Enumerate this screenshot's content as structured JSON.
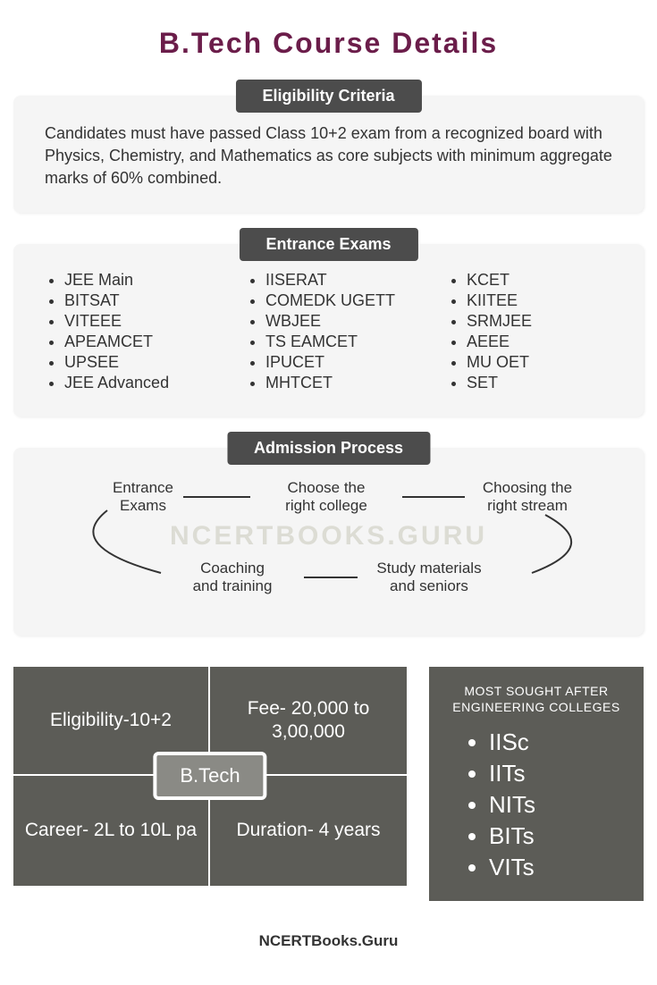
{
  "colors": {
    "title": "#6b1d4a",
    "header_bg": "#4c4c4c",
    "card_bg": "#f5f5f5",
    "dark_panel": "#5c5c57",
    "quad_center": "#8a8a85",
    "watermark": "#dcdcd4",
    "text": "#333333"
  },
  "title": "B.Tech Course Details",
  "eligibility": {
    "header": "Eligibility Criteria",
    "text": "Candidates must have passed Class 10+2 exam from a recognized board with Physics, Chemistry, and Mathematics as core subjects with minimum aggregate marks of 60% combined."
  },
  "exams": {
    "header": "Entrance Exams",
    "col1": [
      "JEE Main",
      "BITSAT",
      "VITEEE",
      "APEAMCET",
      "UPSEE",
      "JEE Advanced"
    ],
    "col2": [
      "IISERAT",
      "COMEDK UGETT",
      "WBJEE",
      "TS EAMCET",
      "IPUCET",
      "MHTCET"
    ],
    "col3": [
      "KCET",
      "KIITEE",
      "SRMJEE",
      "AEEE",
      "MU OET",
      "SET"
    ]
  },
  "process": {
    "header": "Admission Process",
    "steps": {
      "s1": "Entrance\nExams",
      "s2": "Choose the\nright college",
      "s3": "Choosing the\nright stream",
      "s4": "Coaching\nand training",
      "s5": "Study materials\nand seniors"
    }
  },
  "watermark": "NCERTBOOKS.GURU",
  "quad": {
    "tl": "Eligibility-10+2",
    "tr": "Fee- 20,000 to 3,00,000",
    "bl": "Career- 2L to 10L pa",
    "br": "Duration- 4 years",
    "center": "B.Tech"
  },
  "colleges": {
    "title": "MOST SOUGHT AFTER ENGINEERING COLLEGES",
    "items": [
      "IISc",
      "IITs",
      "NITs",
      "BITs",
      "VITs"
    ]
  },
  "footer": "NCERTBooks.Guru"
}
